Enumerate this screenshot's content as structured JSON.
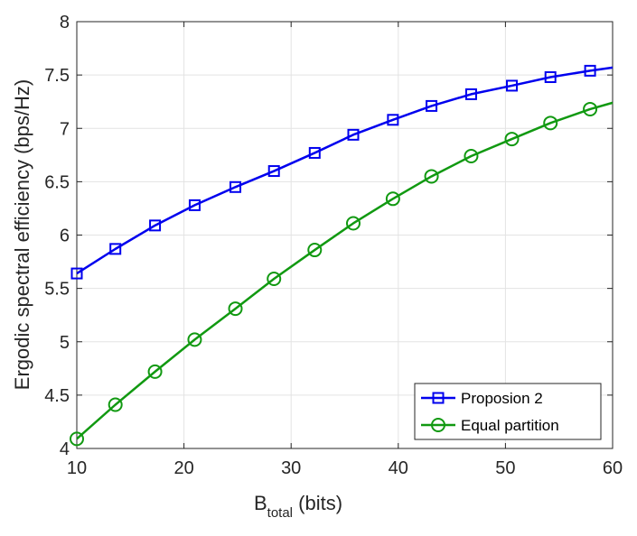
{
  "chart_data": {
    "type": "line",
    "xlabel_main": "B",
    "xlabel_sub": "total",
    "xlabel_unit": " (bits)",
    "ylabel": "Ergodic spectral efficiency (bps/Hz)",
    "xlim": [
      10,
      60
    ],
    "ylim": [
      4,
      8
    ],
    "xticks": [
      10,
      20,
      30,
      40,
      50,
      60
    ],
    "yticks": [
      4,
      4.5,
      5,
      5.5,
      6,
      6.5,
      7,
      7.5,
      8
    ],
    "grid": true,
    "legend_position": "bottom-right",
    "series": [
      {
        "name": "Proposion 2",
        "color": "#0000ee",
        "marker": "square",
        "x": [
          10,
          13.6,
          17.3,
          21,
          24.8,
          28.4,
          32.2,
          35.8,
          39.5,
          43.1,
          46.8,
          50.6,
          54.2,
          57.9,
          60
        ],
        "y": [
          5.64,
          5.87,
          6.09,
          6.28,
          6.45,
          6.6,
          6.77,
          6.94,
          7.08,
          7.21,
          7.32,
          7.4,
          7.48,
          7.54,
          7.57
        ]
      },
      {
        "name": "Equal partition",
        "color": "#119911",
        "marker": "circle",
        "x": [
          10,
          13.6,
          17.3,
          21,
          24.8,
          28.4,
          32.2,
          35.8,
          39.5,
          43.1,
          46.8,
          50.6,
          54.2,
          57.9,
          60
        ],
        "y": [
          4.09,
          4.41,
          4.72,
          5.02,
          5.31,
          5.59,
          5.86,
          6.11,
          6.34,
          6.55,
          6.74,
          6.9,
          7.05,
          7.18,
          7.24
        ]
      }
    ]
  }
}
